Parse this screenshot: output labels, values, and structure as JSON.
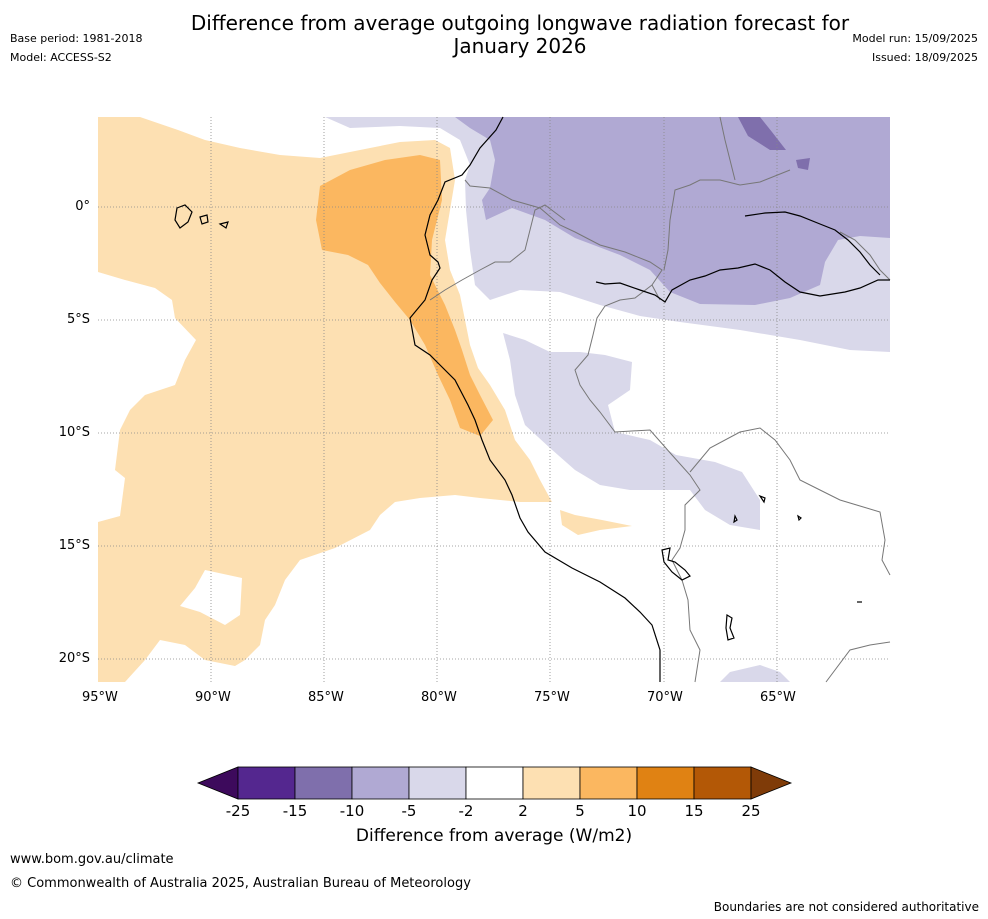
{
  "header": {
    "title_line1": "Difference from average outgoing longwave radiation forecast for",
    "title_line2": "January 2026",
    "base_period": "Base period: 1981-2018",
    "model": "Model: ACCESS-S2",
    "model_run": "Model run: 15/09/2025",
    "issued": "Issued: 18/09/2025"
  },
  "map": {
    "lon_labels": [
      "95°W",
      "90°W",
      "85°W",
      "80°W",
      "75°W",
      "70°W",
      "65°W"
    ],
    "lat_labels": [
      "0°",
      "5°S",
      "10°S",
      "15°S",
      "20°S"
    ]
  },
  "colorbar": {
    "ticks": [
      "-25",
      "-15",
      "-10",
      "-5",
      "-2",
      "2",
      "5",
      "10",
      "15",
      "25"
    ],
    "colors": [
      "#3d0a5c",
      "#54278f",
      "#7f6fac",
      "#b0a9d3",
      "#d9d8ea",
      "#ffffff",
      "#fde0b2",
      "#fbb760",
      "#e08213",
      "#b35806",
      "#7f3b08"
    ],
    "label": "Difference from average (W/m2)"
  },
  "footer": {
    "website": "www.bom.gov.au/climate",
    "copyright": "© Commonwealth of Australia 2025, Australian Bureau of Meteorology",
    "disclaimer": "Boundaries are not considered authoritative"
  }
}
